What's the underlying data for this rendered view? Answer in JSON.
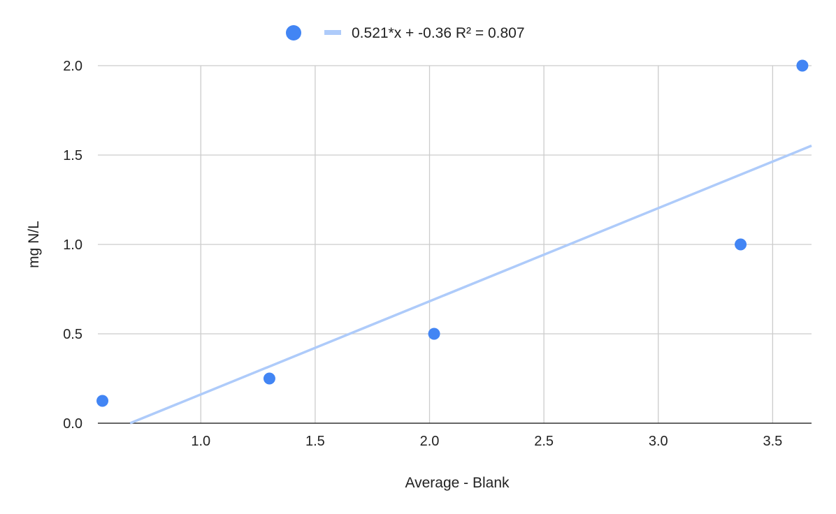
{
  "chart_data": {
    "type": "scatter",
    "title": "",
    "xlabel": "Average - Blank",
    "ylabel": "mg N/L",
    "xlim": [
      0.55,
      3.67
    ],
    "ylim": [
      0,
      2
    ],
    "xticks": [
      "1.0",
      "1.5",
      "2.0",
      "2.5",
      "3.0",
      "3.5"
    ],
    "yticks": [
      "0.0",
      "0.5",
      "1.0",
      "1.5",
      "2.0"
    ],
    "grid": true,
    "legend_position": "top",
    "series": [
      {
        "color": "#4285f4",
        "points": [
          {
            "x": 0.57,
            "y": 0.125
          },
          {
            "x": 1.3,
            "y": 0.25
          },
          {
            "x": 2.02,
            "y": 0.5
          },
          {
            "x": 3.36,
            "y": 1.0
          },
          {
            "x": 3.63,
            "y": 2.0
          }
        ]
      }
    ],
    "trendline": {
      "label": "0.521*x + -0.36 R² = 0.807",
      "slope": 0.521,
      "intercept": -0.36,
      "r2": 0.807,
      "color": "#aecbfa"
    }
  }
}
